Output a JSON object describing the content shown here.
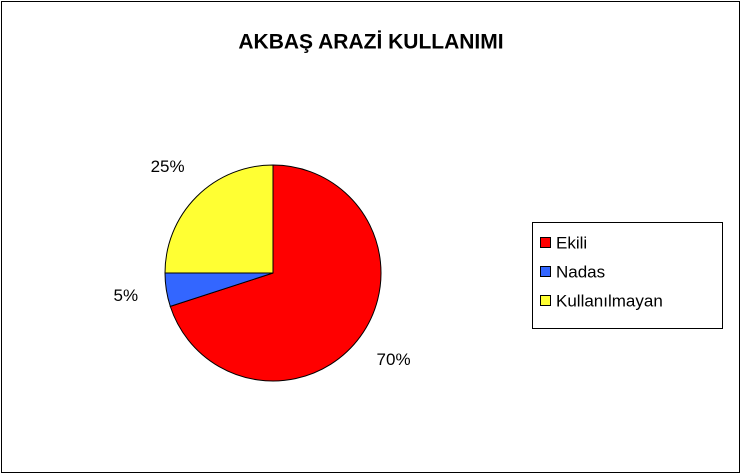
{
  "chart_data": {
    "type": "pie",
    "title": "AKBAŞ ARAZİ KULLANIMI",
    "categories": [
      "Ekili",
      "Nadas",
      "Kullanılmayan"
    ],
    "values": [
      70,
      5,
      25
    ],
    "value_labels": [
      "70%",
      "5%",
      "25%"
    ],
    "colors": [
      "#ff0000",
      "#3366ff",
      "#ffff33"
    ],
    "legend": "right"
  }
}
